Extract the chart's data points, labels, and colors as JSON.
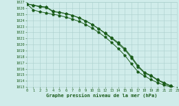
{
  "xlabel": "Graphe pression niveau de la mer (hPa)",
  "ylim": [
    1013,
    1027
  ],
  "xlim": [
    0,
    23
  ],
  "yticks": [
    1013,
    1014,
    1015,
    1016,
    1017,
    1018,
    1019,
    1020,
    1021,
    1022,
    1023,
    1024,
    1025,
    1026,
    1027
  ],
  "xticks": [
    0,
    1,
    2,
    3,
    4,
    5,
    6,
    7,
    8,
    9,
    10,
    11,
    12,
    13,
    14,
    15,
    16,
    17,
    18,
    19,
    20,
    21,
    22,
    23
  ],
  "background_color": "#d0ecea",
  "grid_color": "#aacfcc",
  "line_color": "#1a5c1a",
  "series1_y": [
    1026.7,
    1025.7,
    1025.4,
    1025.2,
    1025.0,
    1024.8,
    1024.5,
    1024.2,
    1023.8,
    1023.3,
    1022.7,
    1022.0,
    1021.2,
    1020.3,
    1019.3,
    1018.2,
    1016.8,
    1015.5,
    1014.8,
    1014.2,
    1013.7,
    1013.3,
    1013.0,
    1012.7
  ],
  "series2_y": [
    1026.7,
    1026.5,
    1026.3,
    1026.2,
    1025.5,
    1025.3,
    1025.1,
    1024.8,
    1024.4,
    1023.9,
    1023.3,
    1022.6,
    1021.8,
    1021.0,
    1020.1,
    1019.1,
    1017.8,
    1016.3,
    1015.3,
    1014.8,
    1014.1,
    1013.6,
    1013.1,
    1012.8
  ],
  "series3_y": [
    1026.7,
    1026.5,
    1026.2,
    1026.1,
    1025.4,
    1025.3,
    1025.1,
    1024.8,
    1024.4,
    1023.9,
    1023.3,
    1022.6,
    1021.9,
    1021.1,
    1020.3,
    1019.3,
    1018.0,
    1016.5,
    1015.4,
    1014.9,
    1014.2,
    1013.7,
    1013.2,
    1012.8
  ]
}
